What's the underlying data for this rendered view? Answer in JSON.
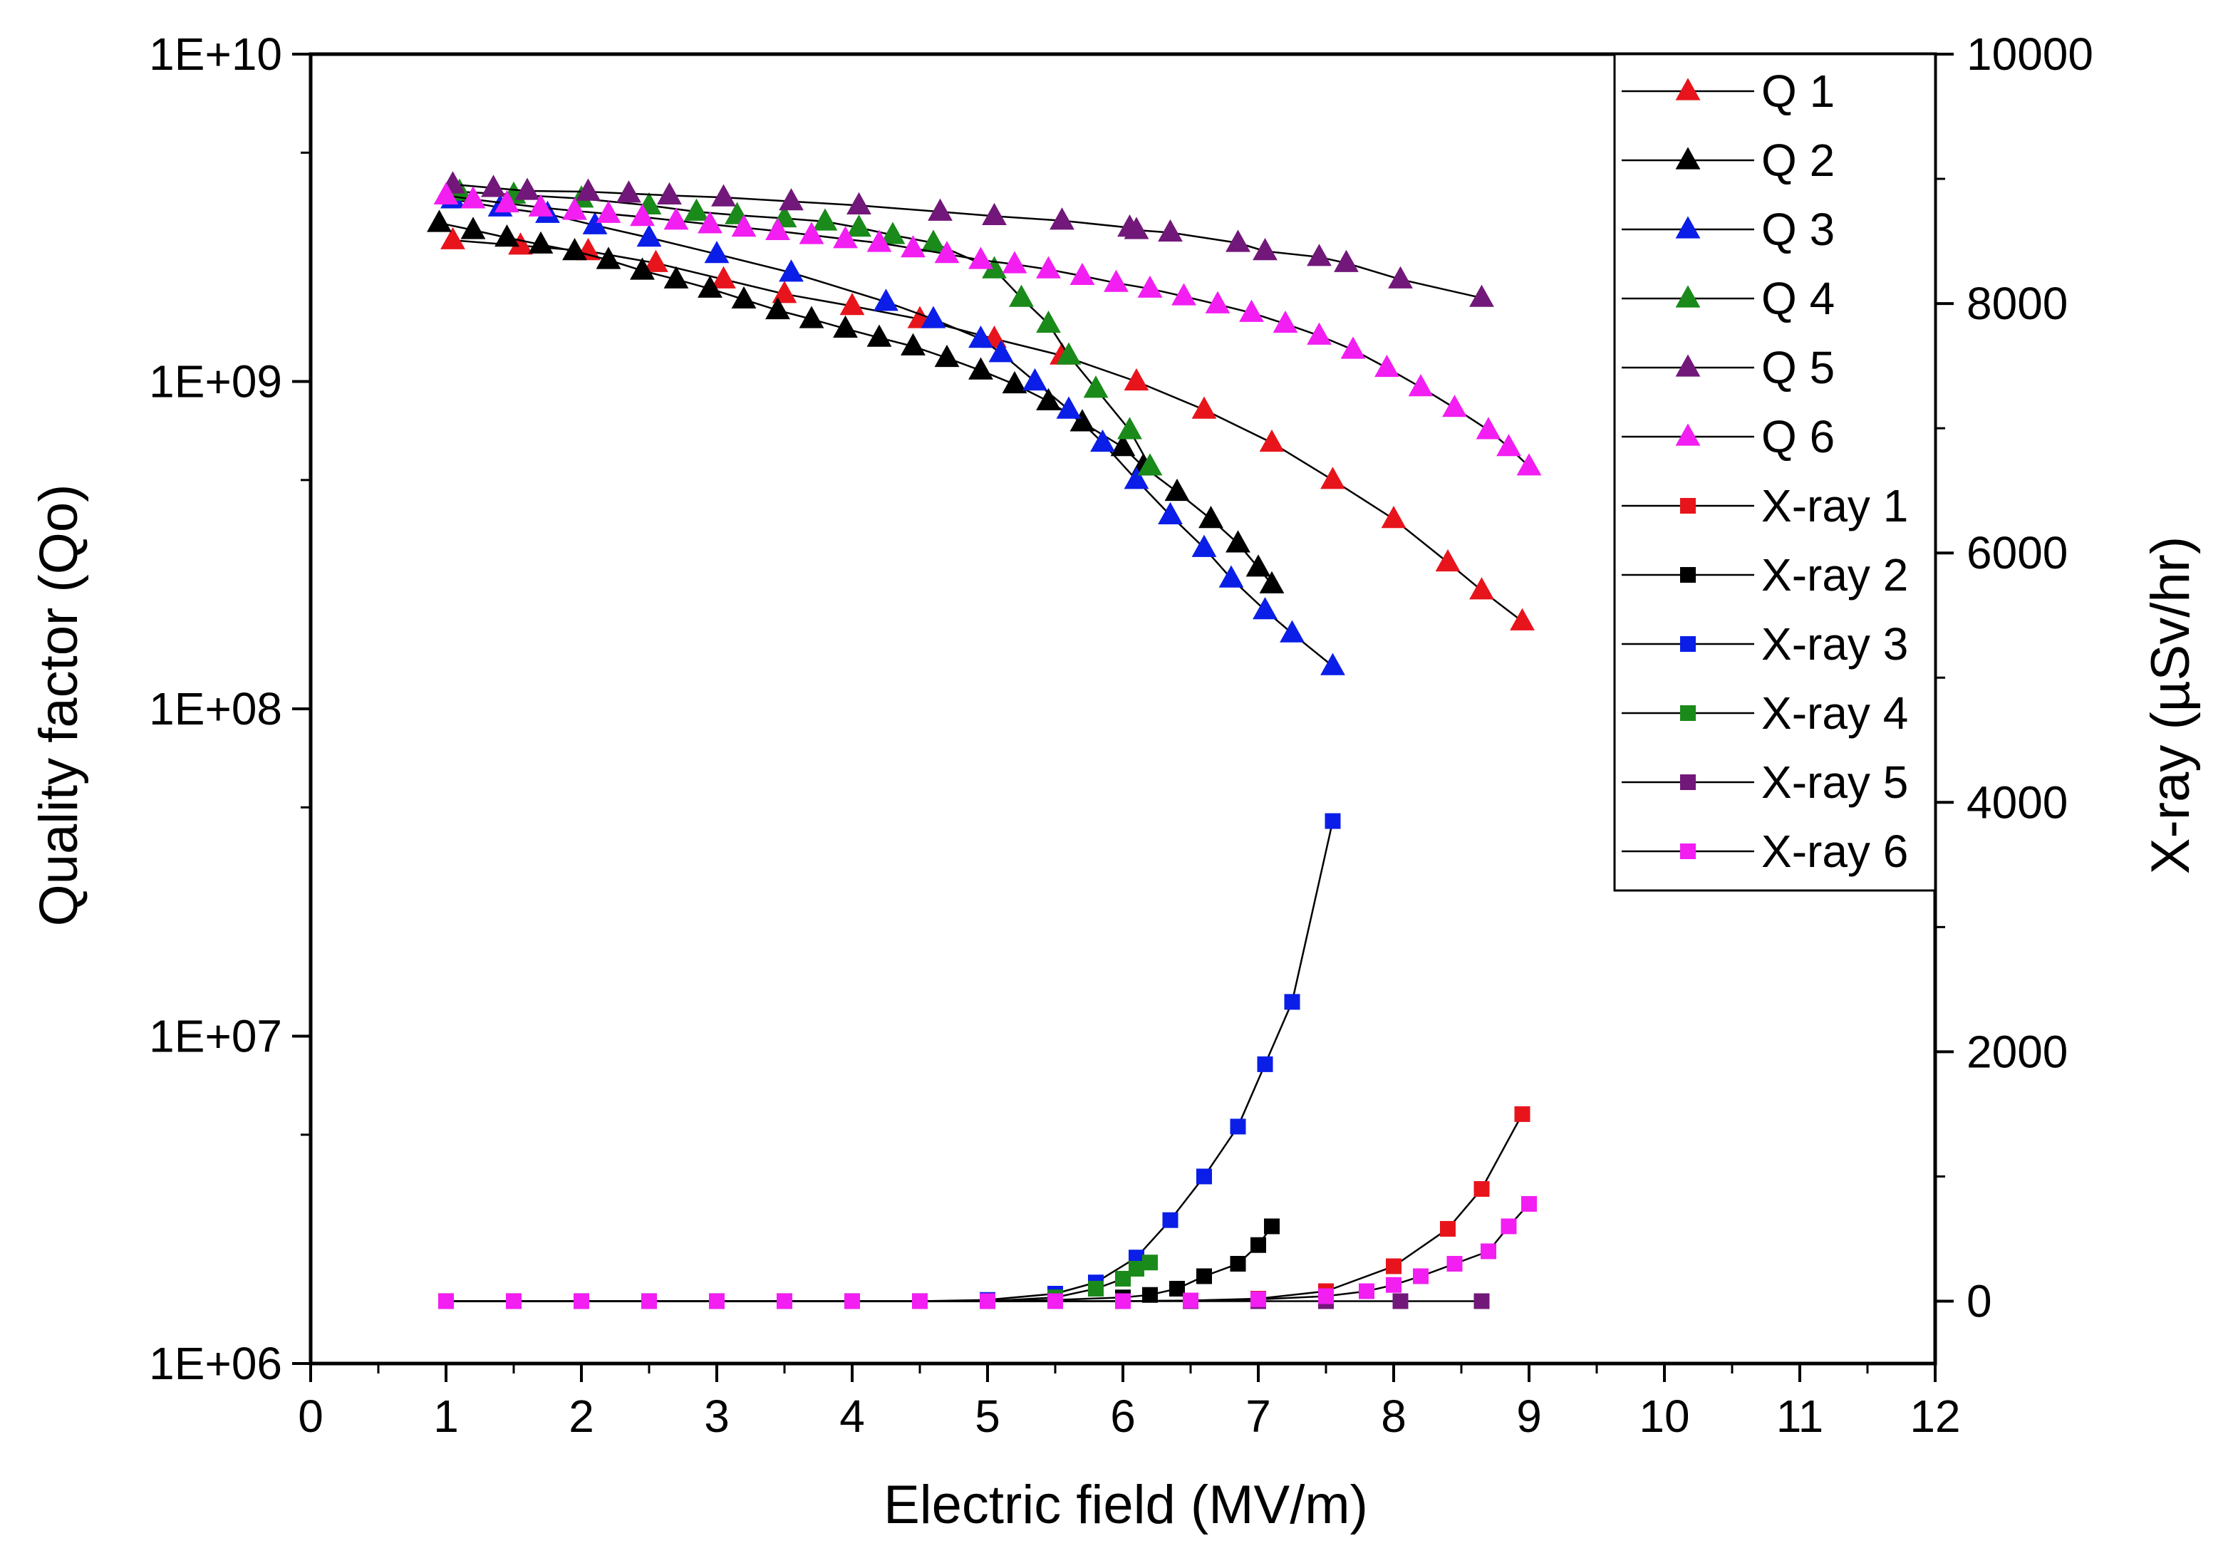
{
  "chart_data": {
    "type": "scatter",
    "title": "",
    "x_axis": {
      "label": "Electric field (MV/m)",
      "range": [
        0,
        12
      ],
      "ticks": [
        0,
        1,
        2,
        3,
        4,
        5,
        6,
        7,
        8,
        9,
        10,
        11,
        12
      ],
      "tick_labels": [
        "0",
        "1",
        "2",
        "3",
        "4",
        "5",
        "6",
        "7",
        "8",
        "9",
        "10",
        "11",
        "12"
      ]
    },
    "y_axis_left": {
      "label": "Quality factor (Qo)",
      "scale": "log",
      "range": [
        1000000,
        10000000000
      ],
      "ticks": [
        1000000,
        10000000,
        100000000,
        1000000000,
        10000000000
      ],
      "tick_labels": [
        "1E+06",
        "1E+07",
        "1E+08",
        "1E+09",
        "1E+10"
      ]
    },
    "y_axis_right": {
      "label": "X-ray (µSv/hr)",
      "scale": "linear",
      "range": [
        -500,
        10000
      ],
      "ticks": [
        0,
        2000,
        4000,
        6000,
        8000,
        10000
      ],
      "tick_labels": [
        "0",
        "2000",
        "4000",
        "6000",
        "8000",
        "10000"
      ]
    },
    "legend_position": "top-right",
    "grid": false,
    "series": [
      {
        "name": "Q 1",
        "axis": "left",
        "marker": "triangle",
        "color": "#e8141c",
        "points": [
          [
            1.05,
            2700000000.0
          ],
          [
            1.55,
            2600000000.0
          ],
          [
            2.05,
            2500000000.0
          ],
          [
            2.55,
            2300000000.0
          ],
          [
            3.05,
            2050000000.0
          ],
          [
            3.5,
            1850000000.0
          ],
          [
            4.0,
            1700000000.0
          ],
          [
            4.5,
            1550000000.0
          ],
          [
            5.05,
            1350000000.0
          ],
          [
            5.55,
            1200000000.0
          ],
          [
            6.1,
            1000000000.0
          ],
          [
            6.6,
            820000000.0
          ],
          [
            7.1,
            650000000.0
          ],
          [
            7.55,
            500000000.0
          ],
          [
            8.0,
            380000000.0
          ],
          [
            8.4,
            280000000.0
          ],
          [
            8.65,
            230000000.0
          ],
          [
            8.95,
            185000000.0
          ]
        ]
      },
      {
        "name": "Q 2",
        "axis": "left",
        "marker": "triangle",
        "color": "#000000",
        "points": [
          [
            0.95,
            3050000000.0
          ],
          [
            1.2,
            2900000000.0
          ],
          [
            1.45,
            2750000000.0
          ],
          [
            1.7,
            2620000000.0
          ],
          [
            1.95,
            2500000000.0
          ],
          [
            2.2,
            2350000000.0
          ],
          [
            2.45,
            2180000000.0
          ],
          [
            2.7,
            2050000000.0
          ],
          [
            2.95,
            1920000000.0
          ],
          [
            3.2,
            1780000000.0
          ],
          [
            3.45,
            1650000000.0
          ],
          [
            3.7,
            1550000000.0
          ],
          [
            3.95,
            1450000000.0
          ],
          [
            4.2,
            1360000000.0
          ],
          [
            4.45,
            1280000000.0
          ],
          [
            4.7,
            1180000000.0
          ],
          [
            4.95,
            1080000000.0
          ],
          [
            5.2,
            980000000.0
          ],
          [
            5.45,
            870000000.0
          ],
          [
            5.7,
            750000000.0
          ],
          [
            6.0,
            630000000.0
          ],
          [
            6.15,
            550000000.0
          ],
          [
            6.4,
            460000000.0
          ],
          [
            6.65,
            380000000.0
          ],
          [
            6.85,
            320000000.0
          ],
          [
            7.0,
            270000000.0
          ],
          [
            7.1,
            240000000.0
          ]
        ]
      },
      {
        "name": "Q 3",
        "axis": "left",
        "marker": "triangle",
        "color": "#0a1ee8",
        "points": [
          [
            1.05,
            3600000000.0
          ],
          [
            1.4,
            3400000000.0
          ],
          [
            1.75,
            3250000000.0
          ],
          [
            2.1,
            3000000000.0
          ],
          [
            2.5,
            2750000000.0
          ],
          [
            3.0,
            2450000000.0
          ],
          [
            3.55,
            2150000000.0
          ],
          [
            4.25,
            1750000000.0
          ],
          [
            4.6,
            1550000000.0
          ],
          [
            4.95,
            1350000000.0
          ],
          [
            5.1,
            1220000000.0
          ],
          [
            5.35,
            1000000000.0
          ],
          [
            5.6,
            820000000.0
          ],
          [
            5.85,
            650000000.0
          ],
          [
            6.1,
            500000000.0
          ],
          [
            6.35,
            390000000.0
          ],
          [
            6.6,
            310000000.0
          ],
          [
            6.8,
            250000000.0
          ],
          [
            7.05,
            200000000.0
          ],
          [
            7.25,
            170000000.0
          ],
          [
            7.55,
            135000000.0
          ]
        ]
      },
      {
        "name": "Q 4",
        "axis": "left",
        "marker": "triangle",
        "color": "#1a8a1a",
        "points": [
          [
            1.1,
            3800000000.0
          ],
          [
            1.5,
            3720000000.0
          ],
          [
            2.0,
            3620000000.0
          ],
          [
            2.5,
            3450000000.0
          ],
          [
            2.85,
            3300000000.0
          ],
          [
            3.15,
            3220000000.0
          ],
          [
            3.5,
            3150000000.0
          ],
          [
            3.8,
            3080000000.0
          ],
          [
            4.05,
            2950000000.0
          ],
          [
            4.3,
            2800000000.0
          ],
          [
            4.6,
            2650000000.0
          ],
          [
            5.05,
            2200000000.0
          ],
          [
            5.25,
            1800000000.0
          ],
          [
            5.45,
            1500000000.0
          ],
          [
            5.6,
            1200000000.0
          ],
          [
            5.8,
            950000000.0
          ],
          [
            6.05,
            710000000.0
          ],
          [
            6.2,
            550000000.0
          ]
        ]
      },
      {
        "name": "Q 5",
        "axis": "left",
        "marker": "triangle",
        "color": "#72187a",
        "points": [
          [
            1.05,
            4000000000.0
          ],
          [
            1.35,
            3900000000.0
          ],
          [
            1.6,
            3820000000.0
          ],
          [
            2.05,
            3800000000.0
          ],
          [
            2.35,
            3750000000.0
          ],
          [
            2.65,
            3700000000.0
          ],
          [
            3.05,
            3650000000.0
          ],
          [
            3.55,
            3550000000.0
          ],
          [
            4.05,
            3450000000.0
          ],
          [
            4.65,
            3300000000.0
          ],
          [
            5.05,
            3200000000.0
          ],
          [
            5.55,
            3100000000.0
          ],
          [
            6.05,
            2950000000.0
          ],
          [
            6.1,
            2900000000.0
          ],
          [
            6.35,
            2850000000.0
          ],
          [
            6.85,
            2650000000.0
          ],
          [
            7.05,
            2500000000.0
          ],
          [
            7.45,
            2400000000.0
          ],
          [
            7.65,
            2300000000.0
          ],
          [
            8.05,
            2050000000.0
          ],
          [
            8.65,
            1800000000.0
          ]
        ]
      },
      {
        "name": "Q 6",
        "axis": "left",
        "marker": "triangle",
        "color": "#f21ef2",
        "points": [
          [
            1.0,
            3700000000.0
          ],
          [
            1.2,
            3600000000.0
          ],
          [
            1.45,
            3500000000.0
          ],
          [
            1.7,
            3400000000.0
          ],
          [
            1.95,
            3320000000.0
          ],
          [
            2.2,
            3250000000.0
          ],
          [
            2.45,
            3180000000.0
          ],
          [
            2.7,
            3100000000.0
          ],
          [
            2.95,
            3020000000.0
          ],
          [
            3.2,
            2950000000.0
          ],
          [
            3.45,
            2880000000.0
          ],
          [
            3.7,
            2800000000.0
          ],
          [
            3.95,
            2720000000.0
          ],
          [
            4.2,
            2650000000.0
          ],
          [
            4.45,
            2550000000.0
          ],
          [
            4.7,
            2450000000.0
          ],
          [
            4.95,
            2350000000.0
          ],
          [
            5.2,
            2280000000.0
          ],
          [
            5.45,
            2200000000.0
          ],
          [
            5.7,
            2100000000.0
          ],
          [
            5.95,
            2000000000.0
          ],
          [
            6.2,
            1920000000.0
          ],
          [
            6.45,
            1820000000.0
          ],
          [
            6.7,
            1720000000.0
          ],
          [
            6.95,
            1620000000.0
          ],
          [
            7.2,
            1500000000.0
          ],
          [
            7.45,
            1380000000.0
          ],
          [
            7.7,
            1250000000.0
          ],
          [
            7.95,
            1100000000.0
          ],
          [
            8.2,
            960000000.0
          ],
          [
            8.45,
            830000000.0
          ],
          [
            8.7,
            710000000.0
          ],
          [
            8.85,
            630000000.0
          ],
          [
            9.0,
            550000000.0
          ]
        ]
      },
      {
        "name": "X-ray 1",
        "axis": "right",
        "marker": "square",
        "color": "#e8141c",
        "points": [
          [
            1.0,
            0
          ],
          [
            1.5,
            0
          ],
          [
            2.0,
            0
          ],
          [
            2.5,
            0
          ],
          [
            3.0,
            0
          ],
          [
            3.5,
            0
          ],
          [
            4.0,
            0
          ],
          [
            4.5,
            0
          ],
          [
            5.0,
            0
          ],
          [
            5.5,
            0
          ],
          [
            6.0,
            0
          ],
          [
            6.5,
            5
          ],
          [
            7.0,
            20
          ],
          [
            7.5,
            80
          ],
          [
            8.0,
            280
          ],
          [
            8.4,
            580
          ],
          [
            8.65,
            900
          ],
          [
            8.95,
            1500
          ]
        ]
      },
      {
        "name": "X-ray 2",
        "axis": "right",
        "marker": "square",
        "color": "#000000",
        "points": [
          [
            1.0,
            0
          ],
          [
            1.5,
            0
          ],
          [
            2.0,
            0
          ],
          [
            2.5,
            0
          ],
          [
            3.0,
            0
          ],
          [
            3.5,
            0
          ],
          [
            4.0,
            0
          ],
          [
            4.5,
            0
          ],
          [
            5.0,
            0
          ],
          [
            5.5,
            10
          ],
          [
            6.0,
            30
          ],
          [
            6.2,
            50
          ],
          [
            6.4,
            100
          ],
          [
            6.6,
            200
          ],
          [
            6.85,
            300
          ],
          [
            7.0,
            450
          ],
          [
            7.1,
            600
          ]
        ]
      },
      {
        "name": "X-ray 3",
        "axis": "right",
        "marker": "square",
        "color": "#0a1ee8",
        "points": [
          [
            1.0,
            0
          ],
          [
            1.5,
            0
          ],
          [
            2.0,
            0
          ],
          [
            2.5,
            0
          ],
          [
            3.0,
            0
          ],
          [
            3.5,
            0
          ],
          [
            4.0,
            0
          ],
          [
            4.5,
            0
          ],
          [
            5.0,
            10
          ],
          [
            5.5,
            60
          ],
          [
            5.8,
            150
          ],
          [
            6.1,
            350
          ],
          [
            6.35,
            650
          ],
          [
            6.6,
            1000
          ],
          [
            6.85,
            1400
          ],
          [
            7.05,
            1900
          ],
          [
            7.25,
            2400
          ],
          [
            7.55,
            3850
          ]
        ]
      },
      {
        "name": "X-ray 4",
        "axis": "right",
        "marker": "square",
        "color": "#1a8a1a",
        "points": [
          [
            1.0,
            0
          ],
          [
            1.5,
            0
          ],
          [
            2.0,
            0
          ],
          [
            2.5,
            0
          ],
          [
            3.0,
            0
          ],
          [
            3.5,
            0
          ],
          [
            4.0,
            0
          ],
          [
            4.5,
            0
          ],
          [
            5.0,
            0
          ],
          [
            5.5,
            30
          ],
          [
            5.8,
            100
          ],
          [
            6.0,
            180
          ],
          [
            6.1,
            260
          ],
          [
            6.2,
            310
          ]
        ]
      },
      {
        "name": "X-ray 5",
        "axis": "right",
        "marker": "square",
        "color": "#72187a",
        "points": [
          [
            1.0,
            0
          ],
          [
            1.5,
            0
          ],
          [
            2.0,
            0
          ],
          [
            2.5,
            0
          ],
          [
            3.0,
            0
          ],
          [
            3.5,
            0
          ],
          [
            4.0,
            0
          ],
          [
            4.5,
            0
          ],
          [
            5.0,
            0
          ],
          [
            5.5,
            0
          ],
          [
            6.0,
            0
          ],
          [
            6.5,
            0
          ],
          [
            7.0,
            0
          ],
          [
            7.5,
            0
          ],
          [
            8.05,
            0
          ],
          [
            8.65,
            0
          ]
        ]
      },
      {
        "name": "X-ray 6",
        "axis": "right",
        "marker": "square",
        "color": "#f21ef2",
        "points": [
          [
            1.0,
            0
          ],
          [
            1.5,
            0
          ],
          [
            2.0,
            0
          ],
          [
            2.5,
            0
          ],
          [
            3.0,
            0
          ],
          [
            3.5,
            0
          ],
          [
            4.0,
            0
          ],
          [
            4.5,
            0
          ],
          [
            5.0,
            0
          ],
          [
            5.5,
            0
          ],
          [
            6.0,
            0
          ],
          [
            6.5,
            5
          ],
          [
            7.0,
            15
          ],
          [
            7.5,
            40
          ],
          [
            7.8,
            80
          ],
          [
            8.0,
            130
          ],
          [
            8.2,
            200
          ],
          [
            8.45,
            300
          ],
          [
            8.7,
            400
          ],
          [
            8.85,
            600
          ],
          [
            9.0,
            780
          ]
        ]
      }
    ]
  }
}
